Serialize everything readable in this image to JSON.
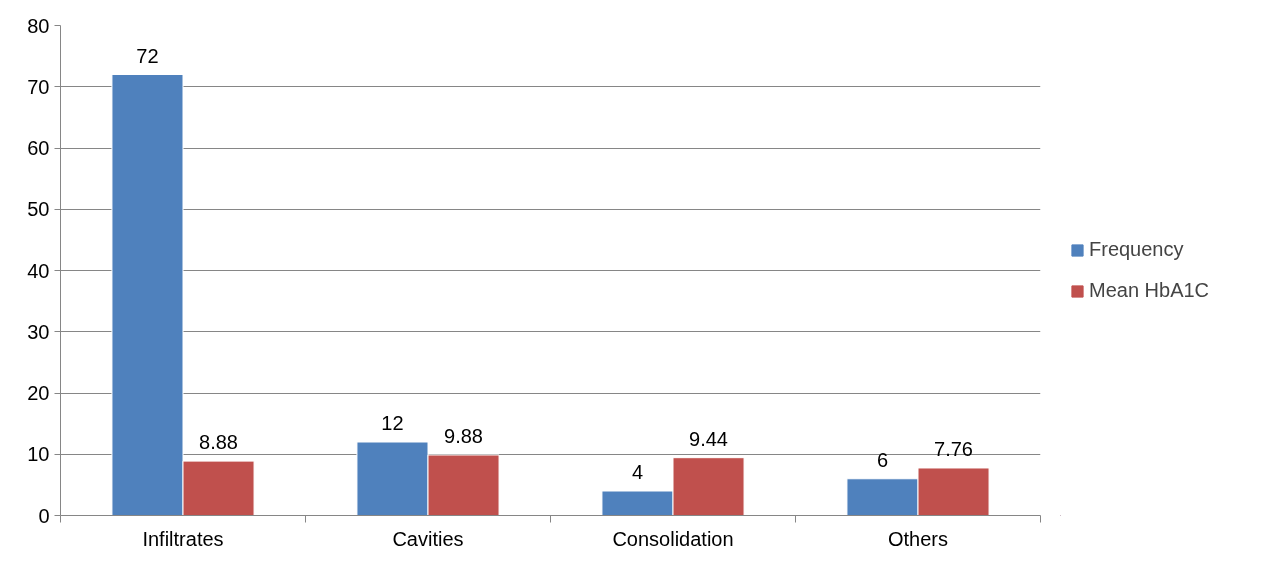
{
  "chart_data": {
    "type": "bar",
    "categories": [
      "Infiltrates",
      "Cavities",
      "Consolidation",
      "Others"
    ],
    "series": [
      {
        "name": "Frequency",
        "color": "#4f81bd",
        "values": [
          72,
          12,
          4,
          6
        ]
      },
      {
        "name": "Mean HbA1C",
        "color": "#c0504d",
        "values": [
          8.88,
          9.88,
          9.44,
          7.76
        ]
      }
    ],
    "ylim": [
      0,
      80
    ],
    "yticks": [
      0,
      10,
      20,
      30,
      40,
      50,
      60,
      70,
      80
    ],
    "grid": "y",
    "legend": "right",
    "data_labels": true
  }
}
